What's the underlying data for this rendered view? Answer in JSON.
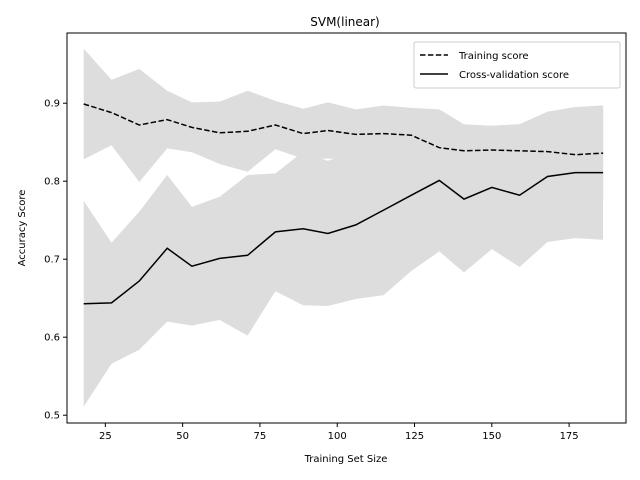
{
  "chart_data": {
    "type": "line",
    "title": "SVM(linear)",
    "xlabel": "Training Set Size",
    "ylabel": "Accuracy Score",
    "xlim": [
      12.6,
      193.4
    ],
    "ylim": [
      0.49,
      0.99
    ],
    "xticks": [
      25,
      50,
      75,
      100,
      125,
      150,
      175
    ],
    "yticks": [
      0.5,
      0.6,
      0.7,
      0.8,
      0.9
    ],
    "ytick_labels": [
      "0.5",
      "0.6",
      "0.7",
      "0.8",
      "0.9"
    ],
    "x": [
      18,
      27,
      36,
      45,
      53,
      62,
      71,
      80,
      89,
      97,
      106,
      115,
      124,
      133,
      141,
      150,
      159,
      168,
      177,
      186
    ],
    "legend_position": "top-right",
    "band_color": "#dddddd",
    "series": [
      {
        "name": "Training score",
        "style": "dashed",
        "color": "#000000",
        "values": [
          0.899,
          0.888,
          0.872,
          0.879,
          0.869,
          0.862,
          0.864,
          0.872,
          0.861,
          0.865,
          0.86,
          0.861,
          0.859,
          0.843,
          0.839,
          0.84,
          0.839,
          0.838,
          0.834,
          0.836
        ],
        "upper": [
          0.97,
          0.93,
          0.944,
          0.916,
          0.901,
          0.902,
          0.916,
          0.903,
          0.893,
          0.901,
          0.892,
          0.897,
          0.894,
          0.892,
          0.873,
          0.871,
          0.873,
          0.889,
          0.895,
          0.897
        ],
        "lower": [
          0.828,
          0.846,
          0.799,
          0.842,
          0.837,
          0.822,
          0.812,
          0.841,
          0.829,
          0.829,
          0.828,
          0.825,
          0.824,
          0.794,
          0.805,
          0.809,
          0.805,
          0.787,
          0.773,
          0.775
        ]
      },
      {
        "name": "Cross-validation score",
        "style": "solid",
        "color": "#000000",
        "values": [
          0.643,
          0.644,
          0.672,
          0.714,
          0.691,
          0.701,
          0.705,
          0.735,
          0.739,
          0.733,
          0.744,
          0.763,
          0.782,
          0.801,
          0.777,
          0.792,
          0.782,
          0.806,
          0.811,
          0.811
        ],
        "upper": [
          0.775,
          0.721,
          0.761,
          0.808,
          0.767,
          0.78,
          0.808,
          0.81,
          0.838,
          0.826,
          0.84,
          0.871,
          0.88,
          0.891,
          0.871,
          0.871,
          0.873,
          0.889,
          0.895,
          0.897
        ],
        "lower": [
          0.511,
          0.566,
          0.584,
          0.62,
          0.615,
          0.622,
          0.602,
          0.659,
          0.641,
          0.64,
          0.649,
          0.654,
          0.685,
          0.71,
          0.683,
          0.713,
          0.69,
          0.722,
          0.727,
          0.725
        ]
      }
    ]
  }
}
